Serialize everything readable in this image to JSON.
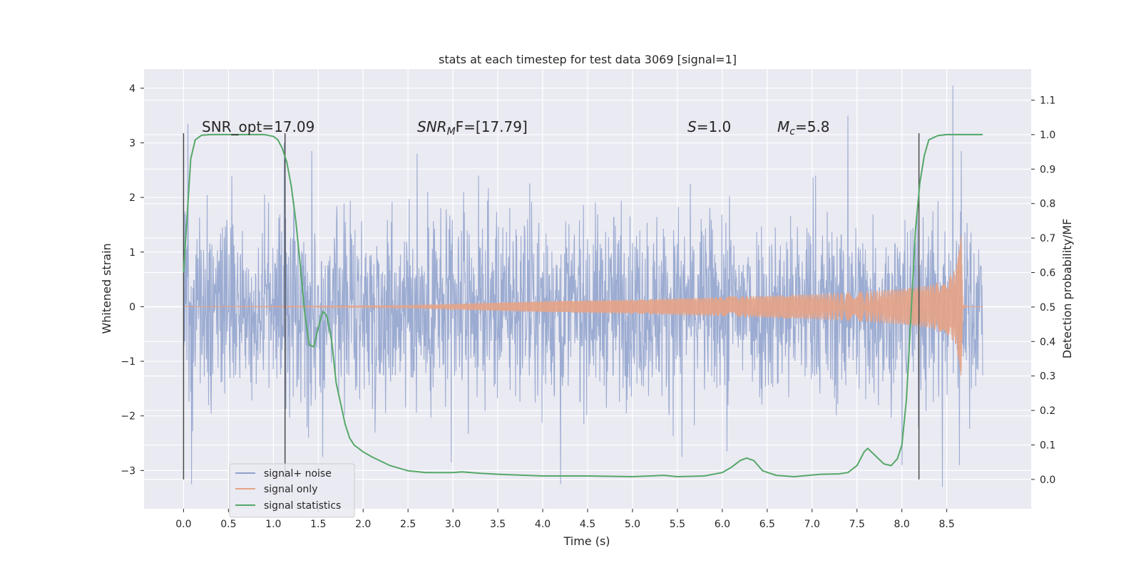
{
  "chart_data": {
    "type": "line",
    "title": "stats at each timestep for test data 3069 [signal=1]",
    "xlabel": "Time (s)",
    "ylabel_left": "Whitened strain",
    "ylabel_right": "Detection probability/MF",
    "xlim": [
      -0.44,
      9.44
    ],
    "ylim_left": [
      -3.7,
      4.35
    ],
    "ylim_right": [
      -0.085,
      1.19
    ],
    "x_ticks": [
      "0.0",
      "0.5",
      "1.0",
      "1.5",
      "2.0",
      "2.5",
      "3.0",
      "3.5",
      "4.0",
      "4.5",
      "5.0",
      "5.5",
      "6.0",
      "6.5",
      "7.0",
      "7.5",
      "8.0",
      "8.5"
    ],
    "y_ticks_left": [
      "4",
      "3",
      "2",
      "1",
      "0",
      "−1",
      "−2",
      "−3"
    ],
    "y_ticks_right": [
      "1.1",
      "1.0",
      "0.9",
      "0.8",
      "0.7",
      "0.6",
      "0.5",
      "0.4",
      "0.3",
      "0.2",
      "0.1",
      "0.0"
    ],
    "grid": true,
    "legend_placement": "lower-left",
    "annotations": {
      "snr_opt": "SNR_opt=17.09",
      "snr_mf_sym": "SNR",
      "snr_mf_sub": "M",
      "snr_mf_rest": "F=[17.79]",
      "s_sym": "S",
      "s_rest": "=1.0",
      "mc_sym": "M",
      "mc_sub": "c",
      "mc_rest": "=5.8"
    },
    "vertical_markers_x": [
      0.0,
      1.13,
      8.19
    ],
    "noise_envelope": {
      "x_range": [
        0.0,
        8.9
      ],
      "typical_amplitude": 1.5,
      "extreme_peaks": [
        {
          "x": 0.05,
          "y": 3.35
        },
        {
          "x": 0.09,
          "y": -3.25
        },
        {
          "x": 1.12,
          "y": 3.0
        },
        {
          "x": 1.43,
          "y": 2.85
        },
        {
          "x": 1.55,
          "y": -2.75
        },
        {
          "x": 2.6,
          "y": 2.8
        },
        {
          "x": 2.98,
          "y": -2.85
        },
        {
          "x": 4.2,
          "y": -3.25
        },
        {
          "x": 5.55,
          "y": -2.75
        },
        {
          "x": 6.05,
          "y": -2.65
        },
        {
          "x": 7.4,
          "y": 3.5
        },
        {
          "x": 8.0,
          "y": -2.9
        },
        {
          "x": 8.45,
          "y": -3.3
        },
        {
          "x": 8.57,
          "y": 4.05
        },
        {
          "x": 8.64,
          "y": -2.9
        },
        {
          "x": 8.66,
          "y": 2.85
        }
      ]
    },
    "signal_envelope": {
      "x": [
        0.0,
        2.5,
        3.0,
        4.0,
        5.0,
        6.0,
        7.0,
        7.5,
        8.0,
        8.3,
        8.5,
        8.6,
        8.64,
        8.66,
        8.68,
        8.72,
        8.9
      ],
      "amplitude": [
        0.0,
        0.02,
        0.05,
        0.1,
        0.13,
        0.18,
        0.23,
        0.27,
        0.33,
        0.39,
        0.5,
        0.7,
        1.0,
        1.3,
        0.05,
        0.0,
        0.0
      ]
    },
    "series": [
      {
        "name": "signal+ noise",
        "color": "#8da0cb",
        "style": "whitened-strain-noise"
      },
      {
        "name": "signal only",
        "color": "#e5a386",
        "style": "chirp-signal"
      },
      {
        "name": "signal statistics",
        "color": "#55a868",
        "x": [
          0.0,
          0.08,
          0.13,
          0.2,
          0.3,
          0.5,
          0.7,
          0.9,
          1.0,
          1.05,
          1.1,
          1.15,
          1.2,
          1.25,
          1.3,
          1.35,
          1.4,
          1.45,
          1.5,
          1.55,
          1.58,
          1.6,
          1.65,
          1.7,
          1.8,
          1.85,
          1.9,
          2.0,
          2.1,
          2.3,
          2.5,
          2.7,
          3.0,
          3.1,
          3.3,
          3.5,
          4.0,
          4.5,
          5.0,
          5.2,
          5.35,
          5.5,
          5.8,
          6.0,
          6.1,
          6.2,
          6.27,
          6.35,
          6.45,
          6.6,
          6.8,
          7.1,
          7.3,
          7.4,
          7.5,
          7.58,
          7.62,
          7.7,
          7.8,
          7.88,
          7.95,
          8.0,
          8.05,
          8.1,
          8.15,
          8.2,
          8.25,
          8.3,
          8.4,
          8.5,
          8.7,
          8.9
        ],
        "values": [
          0.6,
          0.93,
          0.985,
          0.998,
          1.0,
          1.0,
          1.0,
          1.0,
          0.995,
          0.985,
          0.96,
          0.92,
          0.85,
          0.75,
          0.62,
          0.48,
          0.39,
          0.385,
          0.44,
          0.487,
          0.48,
          0.47,
          0.4,
          0.28,
          0.16,
          0.12,
          0.1,
          0.08,
          0.065,
          0.04,
          0.025,
          0.02,
          0.02,
          0.022,
          0.018,
          0.015,
          0.01,
          0.01,
          0.008,
          0.01,
          0.012,
          0.008,
          0.01,
          0.02,
          0.035,
          0.055,
          0.062,
          0.055,
          0.025,
          0.012,
          0.008,
          0.015,
          0.016,
          0.02,
          0.04,
          0.08,
          0.09,
          0.07,
          0.045,
          0.04,
          0.06,
          0.1,
          0.23,
          0.47,
          0.72,
          0.86,
          0.94,
          0.985,
          0.997,
          1.0,
          1.0,
          1.0
        ]
      }
    ]
  }
}
